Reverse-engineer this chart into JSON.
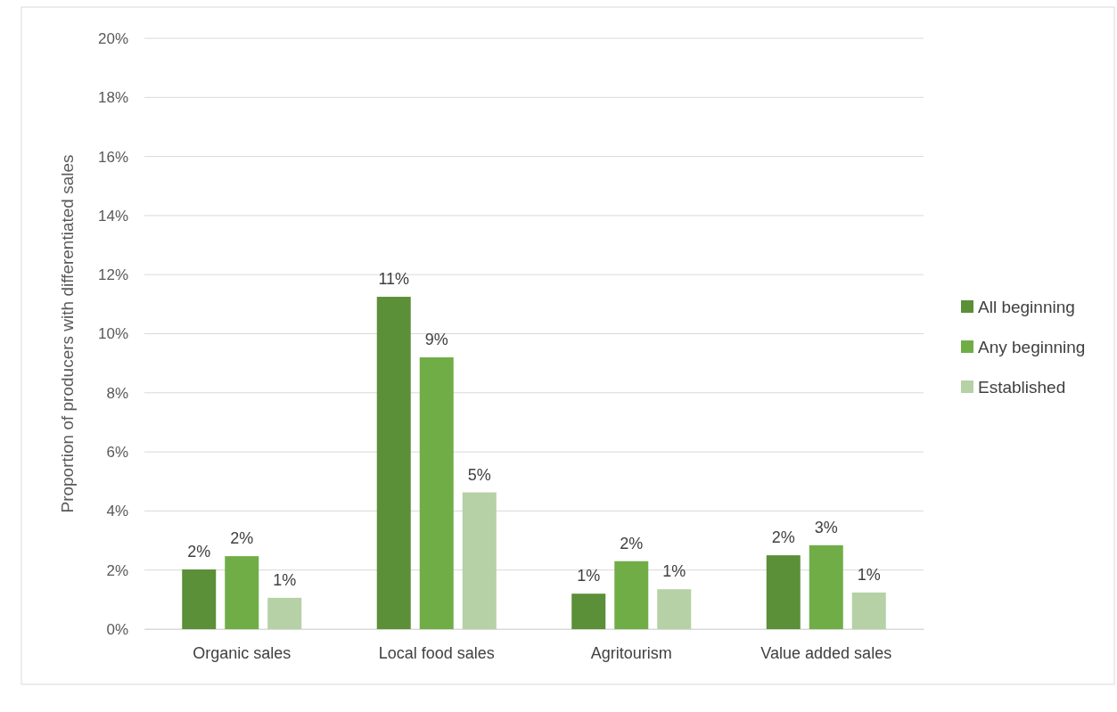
{
  "chart_data": {
    "type": "bar",
    "ylabel": "Proportion of producers with differentiated sales",
    "categories": [
      "Organic sales",
      "Local food sales",
      "Agritourism",
      "Value added sales"
    ],
    "series": [
      {
        "name": "All beginning",
        "color": "#5b8f38",
        "values": [
          2.02,
          11.25,
          1.2,
          2.5
        ],
        "value_labels": [
          "2%",
          "11%",
          "1%",
          "2%"
        ]
      },
      {
        "name": "Any beginning",
        "color": "#70ad47",
        "values": [
          2.47,
          9.2,
          2.3,
          2.84
        ],
        "value_labels": [
          "2%",
          "9%",
          "2%",
          "3%"
        ]
      },
      {
        "name": "Established",
        "color": "#b5d1a5",
        "values": [
          1.06,
          4.63,
          1.35,
          1.24
        ],
        "value_labels": [
          "1%",
          "5%",
          "1%",
          "1%"
        ]
      }
    ],
    "ylim": [
      0,
      20
    ],
    "yticks": [
      {
        "value": 0,
        "label": "0%"
      },
      {
        "value": 2,
        "label": "2%"
      },
      {
        "value": 4,
        "label": "4%"
      },
      {
        "value": 6,
        "label": "6%"
      },
      {
        "value": 8,
        "label": "8%"
      },
      {
        "value": 10,
        "label": "10%"
      },
      {
        "value": 12,
        "label": "12%"
      },
      {
        "value": 14,
        "label": "14%"
      },
      {
        "value": 16,
        "label": "16%"
      },
      {
        "value": 18,
        "label": "18%"
      },
      {
        "value": 20,
        "label": "20%"
      }
    ],
    "grid": "y",
    "legend": "right"
  }
}
